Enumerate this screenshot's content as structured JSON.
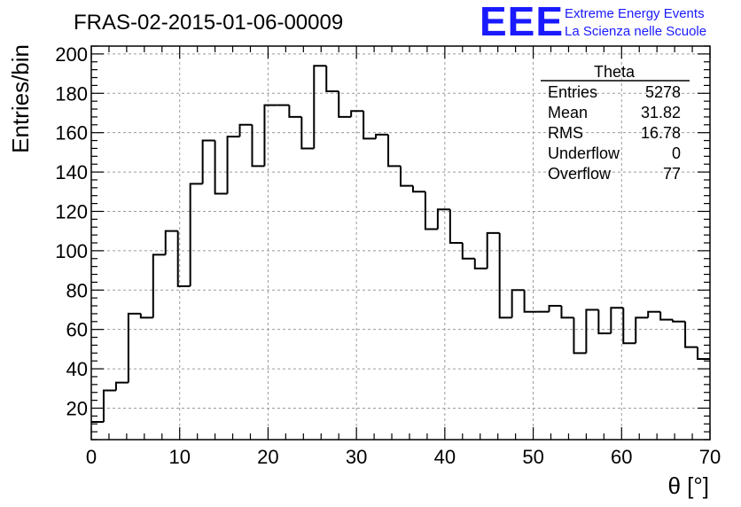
{
  "branding": {
    "logo": "EEE",
    "line1": "Extreme Energy Events",
    "line2": "La Scienza nelle Scuole",
    "color": "#1a1aff"
  },
  "stats": {
    "title": "Theta",
    "rows": [
      {
        "label": "Entries",
        "value": "5278"
      },
      {
        "label": "Mean",
        "value": "31.82"
      },
      {
        "label": "RMS",
        "value": "16.78"
      },
      {
        "label": "Underflow",
        "value": "0"
      },
      {
        "label": "Overflow",
        "value": "77"
      }
    ]
  },
  "chart_data": {
    "type": "bar",
    "style": "step-histogram",
    "title": "FRAS-02-2015-01-06-00009",
    "xlabel": "θ [°]",
    "ylabel": "Entries/bin",
    "xlim": [
      0,
      70
    ],
    "ylim": [
      4,
      204
    ],
    "bin_width": 1.4,
    "x_ticks": [
      0,
      10,
      20,
      30,
      40,
      50,
      60,
      70
    ],
    "y_ticks": [
      20,
      40,
      60,
      80,
      100,
      120,
      140,
      160,
      180,
      200
    ],
    "grid": true,
    "line_color": "#000000",
    "bin_edges_start": 0,
    "values": [
      13,
      29,
      33,
      68,
      66,
      98,
      110,
      82,
      134,
      156,
      129,
      158,
      164,
      143,
      174,
      174,
      168,
      152,
      194,
      181,
      168,
      171,
      157,
      159,
      143,
      133,
      130,
      111,
      121,
      104,
      96,
      91,
      109,
      66,
      80,
      69,
      69,
      72,
      66,
      48,
      70,
      58,
      71,
      53,
      66,
      69,
      65,
      64,
      51,
      45
    ]
  }
}
